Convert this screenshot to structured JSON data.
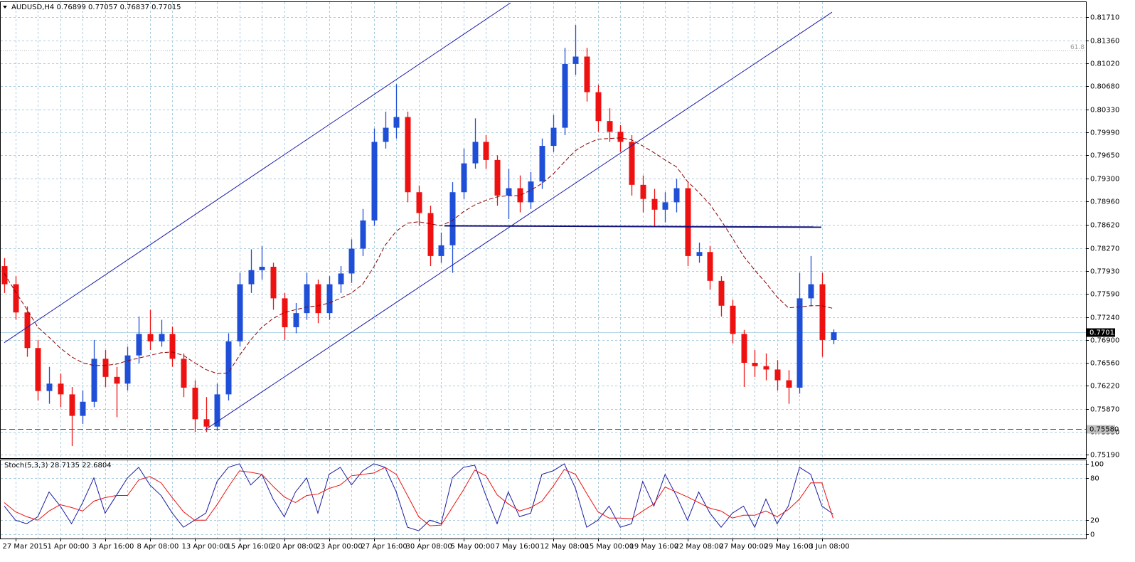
{
  "chart_data": {
    "type": "candlestick",
    "title": "AUDUSD,H4",
    "x": [
      null,
      "27 Mar 2015",
      null,
      null,
      null,
      "1 Apr 00:00",
      null,
      null,
      null,
      "3 Apr 16:00",
      null,
      null,
      null,
      "8 Apr 08:00",
      null,
      null,
      null,
      "13 Apr 00:00",
      null,
      null,
      null,
      "15 Apr 16:00",
      null,
      null,
      null,
      "20 Apr 08:00",
      null,
      null,
      null,
      "23 Apr 00:00",
      null,
      null,
      null,
      "27 Apr 16:00",
      null,
      null,
      null,
      "30 Apr 08:00",
      null,
      null,
      null,
      "5 May 00:00",
      null,
      null,
      null,
      "7 May 16:00",
      null,
      null,
      null,
      "12 May 08:00",
      null,
      null,
      null,
      "15 May 00:00",
      null,
      null,
      null,
      "19 May 16:00",
      null,
      null,
      null,
      "22 May 08:00",
      null,
      null,
      null,
      "27 May 00:00",
      null,
      null,
      null,
      "29 May 16:00",
      null,
      null,
      null,
      "3 Jun 08:00",
      null
    ],
    "open": [
      0.78,
      0.7773,
      0.7731,
      0.7678,
      0.7614,
      0.7625,
      0.7609,
      0.7577,
      0.7598,
      0.7662,
      0.7635,
      0.7625,
      0.7667,
      0.7699,
      0.7688,
      0.7699,
      0.7662,
      0.7619,
      0.7572,
      0.7561,
      0.7609,
      0.7688,
      0.7773,
      0.7794,
      0.7799,
      0.7752,
      0.7709,
      0.773,
      0.7773,
      0.773,
      0.7773,
      0.7789,
      0.7826,
      0.7868,
      0.7985,
      0.8006,
      0.8022,
      0.791,
      0.7879,
      0.7815,
      0.7831,
      0.791,
      0.7953,
      0.7985,
      0.7958,
      0.7905,
      0.7916,
      0.7895,
      0.7926,
      0.7979,
      0.8006,
      0.8101,
      0.8112,
      0.8059,
      0.8016,
      0.8,
      0.7985,
      0.7921,
      0.79,
      0.7884,
      0.7895,
      0.7916,
      0.7815,
      0.7821,
      0.7778,
      0.7741,
      0.7699,
      0.7656,
      0.7651,
      0.7646,
      0.763,
      0.7619,
      0.7752,
      0.7773,
      0.76899
    ],
    "high": [
      0.7812,
      0.7785,
      0.774,
      0.769,
      0.765,
      0.764,
      0.762,
      0.7615,
      0.769,
      0.7675,
      0.765,
      0.768,
      0.7725,
      0.7735,
      0.772,
      0.771,
      0.767,
      0.763,
      0.7605,
      0.7625,
      0.77,
      0.779,
      0.7825,
      0.783,
      0.7805,
      0.776,
      0.7745,
      0.779,
      0.778,
      0.7785,
      0.78,
      0.784,
      0.7885,
      0.8005,
      0.803,
      0.8071,
      0.803,
      0.792,
      0.789,
      0.785,
      0.7925,
      0.7975,
      0.802,
      0.7995,
      0.7965,
      0.7945,
      0.7935,
      0.794,
      0.799,
      0.8025,
      0.8125,
      0.8159,
      0.8125,
      0.807,
      0.8035,
      0.801,
      0.7995,
      0.7935,
      0.7915,
      0.791,
      0.793,
      0.7925,
      0.7835,
      0.783,
      0.7785,
      0.775,
      0.7705,
      0.7675,
      0.767,
      0.766,
      0.7645,
      0.779,
      0.7815,
      0.779,
      0.77057
    ],
    "low": [
      0.776,
      0.772,
      0.7665,
      0.76,
      0.7595,
      0.759,
      0.7532,
      0.7565,
      0.759,
      0.762,
      0.7575,
      0.7615,
      0.7655,
      0.7675,
      0.768,
      0.765,
      0.7605,
      0.7553,
      0.7553,
      0.7555,
      0.76,
      0.768,
      0.776,
      0.778,
      0.7735,
      0.769,
      0.77,
      0.772,
      0.7715,
      0.772,
      0.776,
      0.7775,
      0.7815,
      0.786,
      0.7975,
      0.799,
      0.7895,
      0.786,
      0.78,
      0.7805,
      0.779,
      0.79,
      0.7945,
      0.7945,
      0.789,
      0.787,
      0.788,
      0.7885,
      0.7915,
      0.797,
      0.7995,
      0.8085,
      0.8045,
      0.8,
      0.7985,
      0.797,
      0.7905,
      0.788,
      0.786,
      0.7865,
      0.788,
      0.78,
      0.7805,
      0.7765,
      0.7725,
      0.7685,
      0.762,
      0.7635,
      0.763,
      0.7615,
      0.7595,
      0.761,
      0.774,
      0.7665,
      0.76837
    ],
    "close": [
      0.7773,
      0.7731,
      0.7678,
      0.7614,
      0.7625,
      0.7609,
      0.7577,
      0.7598,
      0.7662,
      0.7635,
      0.7625,
      0.7667,
      0.7699,
      0.7688,
      0.7699,
      0.7662,
      0.7619,
      0.7572,
      0.7561,
      0.7609,
      0.7688,
      0.7773,
      0.7794,
      0.7799,
      0.7752,
      0.7709,
      0.773,
      0.7773,
      0.773,
      0.7773,
      0.7789,
      0.7826,
      0.7868,
      0.7985,
      0.8006,
      0.8022,
      0.791,
      0.7879,
      0.7815,
      0.7831,
      0.791,
      0.7953,
      0.7985,
      0.7958,
      0.7905,
      0.7916,
      0.7895,
      0.7926,
      0.7979,
      0.8006,
      0.8101,
      0.8112,
      0.8059,
      0.8016,
      0.8,
      0.7985,
      0.7921,
      0.79,
      0.7884,
      0.7895,
      0.7916,
      0.7815,
      0.7821,
      0.7778,
      0.7741,
      0.7699,
      0.7656,
      0.7651,
      0.7646,
      0.763,
      0.7619,
      0.7752,
      0.7773,
      0.769,
      0.77015
    ],
    "bull_color": "#1f4fd6",
    "bear_color": "#ee1111",
    "ylim": [
      0.7513,
      0.8192
    ],
    "yticks": [
      {
        "value": 0.8171,
        "label": "0.81710"
      },
      {
        "value": 0.8136,
        "label": "0.81360"
      },
      {
        "value": 0.8102,
        "label": "0.81020"
      },
      {
        "value": 0.8068,
        "label": "0.80680"
      },
      {
        "value": 0.8033,
        "label": "0.80330"
      },
      {
        "value": 0.7999,
        "label": "0.79990"
      },
      {
        "value": 0.7965,
        "label": "0.79650"
      },
      {
        "value": 0.793,
        "label": "0.79300"
      },
      {
        "value": 0.7896,
        "label": "0.78960"
      },
      {
        "value": 0.7862,
        "label": "0.78620"
      },
      {
        "value": 0.7827,
        "label": "0.78270"
      },
      {
        "value": 0.7793,
        "label": "0.77930"
      },
      {
        "value": 0.7759,
        "label": "0.77590"
      },
      {
        "value": 0.7724,
        "label": "0.77240"
      },
      {
        "value": 0.769,
        "label": "0.76900"
      },
      {
        "value": 0.7656,
        "label": "0.76560"
      },
      {
        "value": 0.7622,
        "label": "0.76220"
      },
      {
        "value": 0.7587,
        "label": "0.75870"
      },
      {
        "value": 0.7553,
        "label": "0.75530"
      },
      {
        "value": 0.7519,
        "label": "0.75190"
      }
    ],
    "grid": true,
    "moving_average": {
      "color": "#8b0000",
      "values": [
        0.7789,
        0.7762,
        0.7736,
        0.7709,
        0.7694,
        0.7678,
        0.7665,
        0.7656,
        0.7652,
        0.7652,
        0.7654,
        0.7659,
        0.7663,
        0.7667,
        0.7671,
        0.7672,
        0.7667,
        0.7656,
        0.7646,
        0.764,
        0.7641,
        0.7667,
        0.769,
        0.7709,
        0.7722,
        0.7731,
        0.7735,
        0.7739,
        0.7741,
        0.7745,
        0.7752,
        0.776,
        0.7773,
        0.7799,
        0.7831,
        0.7852,
        0.7864,
        0.7866,
        0.7863,
        0.786,
        0.7868,
        0.7881,
        0.7891,
        0.7898,
        0.7903,
        0.7905,
        0.7905,
        0.7913,
        0.7923,
        0.7937,
        0.7955,
        0.7972,
        0.7982,
        0.7989,
        0.799,
        0.7991,
        0.7988,
        0.7979,
        0.7969,
        0.7958,
        0.7948,
        0.7926,
        0.791,
        0.7892,
        0.7868,
        0.7842,
        0.7815,
        0.7794,
        0.7775,
        0.7754,
        0.7738,
        0.7739,
        0.7741,
        0.7741,
        0.7737
      ]
    },
    "lines": [
      {
        "x": [
          0,
          45.2
        ],
        "y": [
          0.7686,
          0.8192
        ],
        "color": "#1c1ca8",
        "width": 1
      },
      {
        "x": [
          17.9,
          73.9
        ],
        "y": [
          0.7556,
          0.8178
        ],
        "color": "#1c1ca8",
        "width": 1
      },
      {
        "x": [
          39.3,
          72.95
        ],
        "y": [
          0.786,
          0.7858
        ],
        "color": "#10107a",
        "width": 2
      }
    ],
    "hline": {
      "value": 0.7558,
      "label": "0.75580"
    },
    "fibo": {
      "value": 0.8121,
      "label": "61.8"
    },
    "stochastic": {
      "title": "Stoch(5,3,3)",
      "ylim": [
        -6,
        106
      ],
      "yticks": [
        100,
        80,
        20,
        0
      ],
      "series": [
        {
          "color": "#1a1aa0",
          "values": [
            40,
            20,
            15,
            25,
            60,
            40,
            15,
            45,
            80,
            30,
            55,
            80,
            95,
            70,
            55,
            30,
            10,
            20,
            30,
            75,
            95,
            100,
            70,
            85,
            50,
            25,
            60,
            80,
            30,
            85,
            95,
            70,
            90,
            100,
            95,
            60,
            10,
            5,
            20,
            15,
            80,
            95,
            98,
            55,
            15,
            60,
            25,
            30,
            85,
            90,
            100,
            65,
            10,
            20,
            40,
            10,
            15,
            75,
            40,
            85,
            55,
            20,
            60,
            30,
            10,
            30,
            40,
            10,
            50,
            15,
            40,
            95,
            85,
            40,
            28.7135
          ]
        },
        {
          "color": "#ee1111",
          "values": [
            45,
            32,
            25,
            20,
            33,
            42,
            38,
            33,
            47,
            52,
            55,
            55,
            77,
            82,
            73,
            52,
            32,
            20,
            20,
            42,
            67,
            90,
            88,
            85,
            68,
            53,
            45,
            55,
            57,
            65,
            70,
            83,
            85,
            87,
            95,
            85,
            55,
            25,
            12,
            13,
            38,
            63,
            91,
            83,
            56,
            43,
            33,
            38,
            47,
            68,
            92,
            85,
            58,
            32,
            23,
            23,
            22,
            33,
            43,
            67,
            60,
            53,
            45,
            37,
            33,
            23,
            27,
            27,
            33,
            25,
            35,
            50,
            73,
            73,
            22.6804
          ]
        }
      ]
    }
  }
}
